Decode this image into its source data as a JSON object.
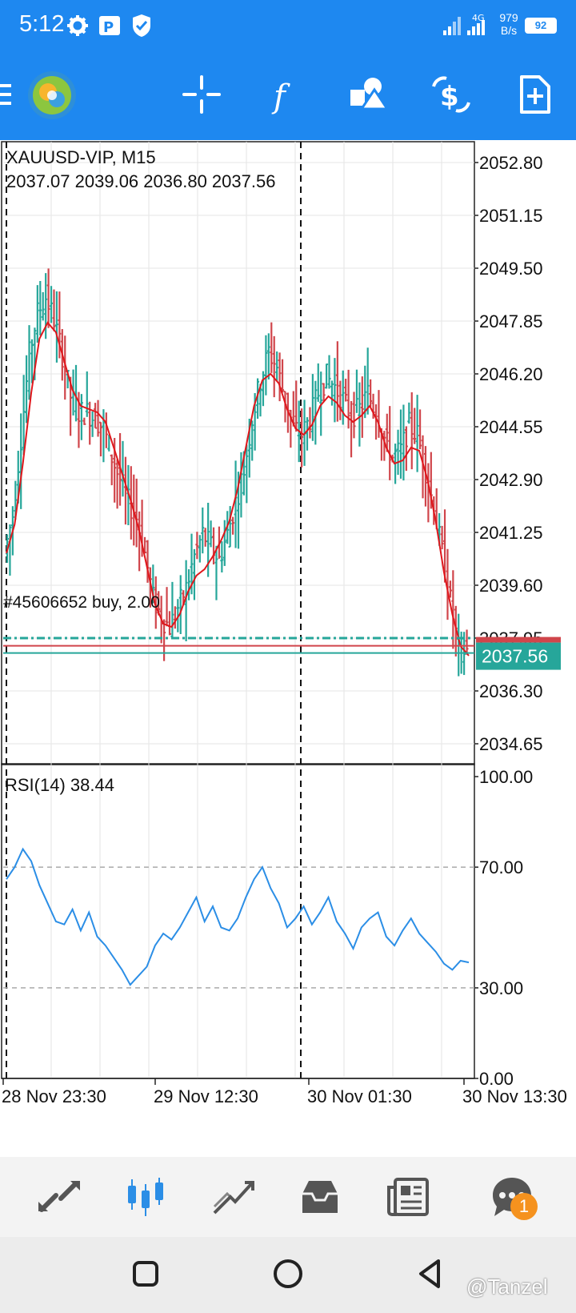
{
  "status_bar": {
    "time": "5:12",
    "net_speed_top": "979",
    "net_speed_bottom": "B/s",
    "network_type": "4G",
    "battery": "92",
    "icons": [
      "gear-icon",
      "parking-icon",
      "shield-icon",
      "signal-icon",
      "signal-4g-icon",
      "battery-icon"
    ]
  },
  "toolbar": {
    "icons": [
      "menu-icon",
      "app-logo-icon",
      "crosshair-icon",
      "function-icon",
      "objects-icon",
      "trade-icon",
      "new-order-icon"
    ]
  },
  "chart": {
    "symbol_label": "XAUUSD-VIP, M15",
    "ohlc_label": "2037.07 2039.06 2036.80 2037.56",
    "order_label": "#45606652 buy, 2.00",
    "current_price_label": "2037.56",
    "hidden_price_label": "2037.65",
    "price_ticks": [
      "2052.80",
      "2051.15",
      "2049.50",
      "2047.85",
      "2046.20",
      "2044.55",
      "2042.90",
      "2041.25",
      "2039.60",
      "2037.95",
      "2036.30",
      "2034.65"
    ],
    "indicator_label": "RSI(14) 38.44",
    "rsi_ticks": [
      "100.00",
      "70.00",
      "30.00",
      "0.00"
    ],
    "time_labels": [
      "28 Nov 23:30",
      "29 Nov 12:30",
      "30 Nov 01:30",
      "30 Nov 13:30"
    ],
    "colors": {
      "bull": "#26a69a",
      "bear": "#d0454b",
      "ma": "#e0161b",
      "rsi": "#2b8ee6",
      "price_tag": "#26a69a",
      "brand_blue": "#1e88f0"
    }
  },
  "chart_data": {
    "type": "line",
    "instrument": "XAUUSD-VIP",
    "timeframe": "M15",
    "ohlc": {
      "open": 2037.07,
      "high": 2039.06,
      "low": 2036.8,
      "close": 2037.56
    },
    "ylim": [
      2034.0,
      2053.5
    ],
    "price_series": [
      2040.6,
      2041.8,
      2044.2,
      2046.8,
      2048.1,
      2048.6,
      2047.9,
      2046.8,
      2045.5,
      2045.0,
      2045.0,
      2044.8,
      2044.5,
      2043.6,
      2042.9,
      2042.2,
      2041.7,
      2040.6,
      2039.2,
      2038.6,
      2038.3,
      2038.9,
      2039.5,
      2040.5,
      2041.2,
      2040.8,
      2040.4,
      2041.2,
      2042.2,
      2043.2,
      2044.8,
      2046.0,
      2046.9,
      2046.4,
      2045.4,
      2044.5,
      2044.3,
      2044.8,
      2045.6,
      2046.1,
      2045.8,
      2045.4,
      2044.9,
      2045.1,
      2045.6,
      2045.0,
      2044.2,
      2043.6,
      2043.8,
      2044.6,
      2044.3,
      2043.2,
      2042.0,
      2040.6,
      2039.1,
      2037.6,
      2037.56
    ],
    "ma_series": [
      2040.6,
      2041.5,
      2043.4,
      2045.6,
      2047.3,
      2047.8,
      2047.5,
      2046.6,
      2045.7,
      2045.2,
      2045.1,
      2045.0,
      2044.7,
      2043.9,
      2043.1,
      2042.3,
      2041.4,
      2040.2,
      2039.0,
      2038.4,
      2038.3,
      2038.7,
      2039.4,
      2039.9,
      2040.1,
      2040.5,
      2041.0,
      2041.6,
      2042.6,
      2043.9,
      2045.2,
      2046.0,
      2046.2,
      2045.9,
      2045.1,
      2044.5,
      2044.3,
      2044.6,
      2045.2,
      2045.5,
      2045.3,
      2044.9,
      2044.7,
      2044.9,
      2045.2,
      2044.7,
      2043.9,
      2043.4,
      2043.5,
      2043.9,
      2043.8,
      2042.9,
      2041.6,
      2040.0,
      2038.7,
      2037.7,
      2037.4
    ],
    "order_price": 2037.95,
    "rsi": {
      "name": "RSI(14)",
      "last": 38.44,
      "ylim": [
        0,
        100
      ],
      "levels": [
        70,
        30
      ],
      "values": [
        66,
        70,
        76,
        72,
        64,
        58,
        52,
        51,
        56,
        49,
        55,
        47,
        44,
        40,
        36,
        31,
        34,
        37,
        44,
        48,
        46,
        50,
        55,
        60,
        52,
        57,
        50,
        49,
        53,
        60,
        66,
        70,
        63,
        58,
        50,
        53,
        57,
        51,
        55,
        60,
        52,
        48,
        43,
        50,
        53,
        55,
        47,
        44,
        49,
        53,
        48,
        45,
        42,
        38,
        36,
        39,
        38.44
      ]
    },
    "x_labels": [
      "28 Nov 23:30",
      "29 Nov 12:30",
      "30 Nov 01:30",
      "30 Nov 13:30"
    ]
  },
  "bottom_nav": {
    "items": [
      "quotes-icon",
      "chart-icon",
      "trade-icon",
      "history-icon",
      "news-icon",
      "chat-icon"
    ],
    "chat_badge": "1"
  },
  "system_nav": {
    "watermark": "@Tanzel",
    "icons": [
      "recents-icon",
      "home-icon",
      "back-icon"
    ]
  }
}
